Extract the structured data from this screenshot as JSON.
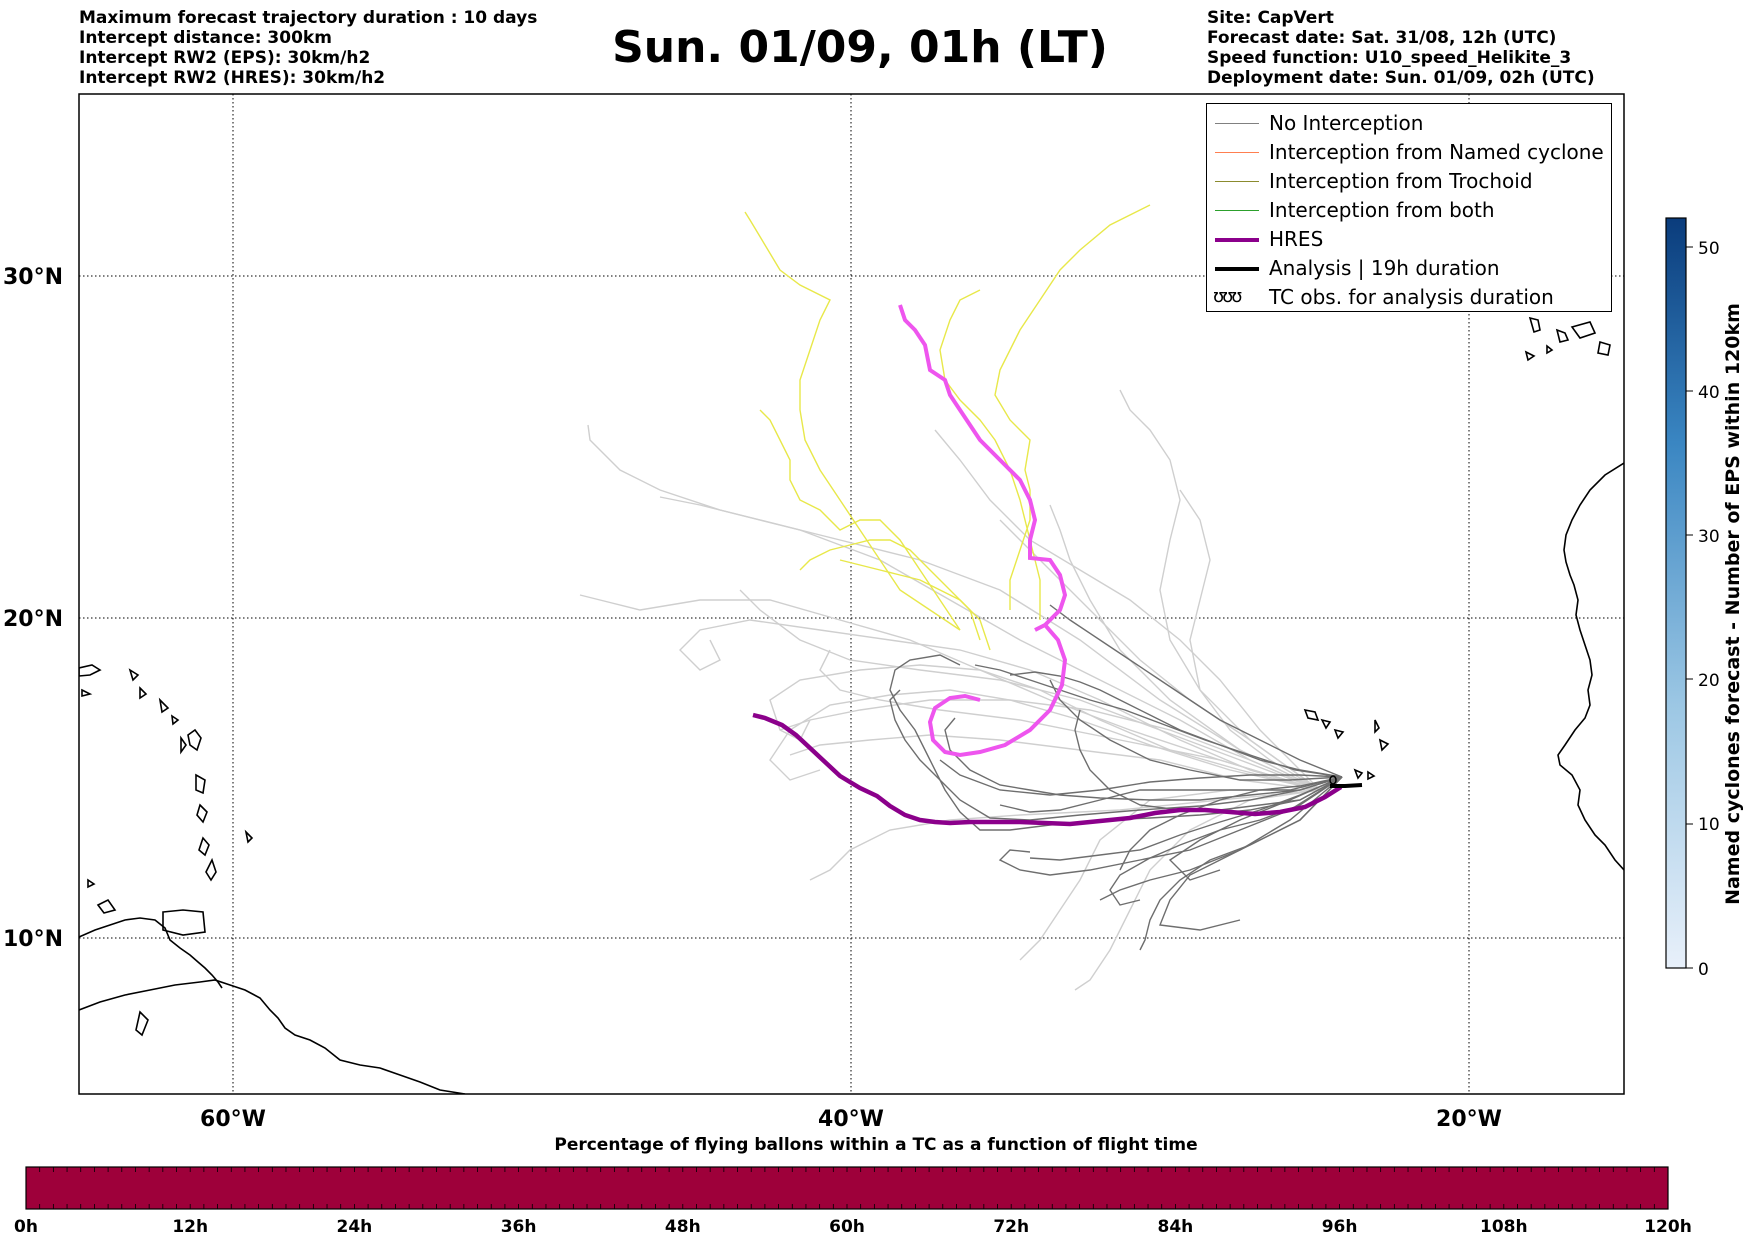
{
  "info_left": [
    "Maximum forecast trajectory duration : 10 days",
    "Intercept distance: 300km",
    "Intercept RW2 (EPS):  30km/h2",
    "Intercept RW2 (HRES): 30km/h2"
  ],
  "info_right": [
    "Site: CapVert",
    "Forecast date: Sat. 31/08, 12h (UTC)",
    "Speed function: U10_speed_Helikite_3",
    "Deployment date: Sun. 01/09, 02h (UTC)"
  ],
  "title": "Sun. 01/09, 01h (LT)",
  "map": {
    "lat_labels": [
      "30°N",
      "20°N",
      "10°N"
    ],
    "lon_labels": [
      "60°W",
      "40°W",
      "20°W"
    ]
  },
  "legend": [
    {
      "label": "No Interception",
      "color": "#808080",
      "icon": "thin-line"
    },
    {
      "label": "Interception from Named cyclone",
      "color": "#ff7f50",
      "icon": "thin-line"
    },
    {
      "label": "Interception from Trochoid",
      "color": "#8b8b2e",
      "icon": "thin-line"
    },
    {
      "label": "Interception from both",
      "color": "#2ca02c",
      "icon": "thin-line"
    },
    {
      "label": "HRES",
      "color": "#8b008b",
      "icon": "thick-line"
    },
    {
      "label": "Analysis | 19h duration",
      "color": "#000000",
      "icon": "thick-line"
    },
    {
      "label": "TC obs. for analysis duration",
      "color": "#000000",
      "icon": "tc-symbol"
    }
  ],
  "tc_glyph": "ʊʊʊ",
  "colorbar_right": {
    "label": "Named cyclones forecast - Number of EPS within 120km",
    "ticks": [
      "0",
      "10",
      "20",
      "30",
      "40",
      "50"
    ],
    "range": [
      0,
      52
    ]
  },
  "colorbar_bottom": {
    "caption": "Percentage of flying ballons within a TC as a function of flight time",
    "ticks": [
      "0h",
      "12h",
      "24h",
      "36h",
      "48h",
      "60h",
      "72h",
      "84h",
      "96h",
      "108h",
      "120h"
    ],
    "fill_color": "#9e003a"
  },
  "colors": {
    "no_interception": "#808080",
    "trochoid": "#e8e84a",
    "hres": "#8b008b",
    "hres_extension": "#ee55ee",
    "analysis": "#000000",
    "eps_far": "#cfcfcf"
  }
}
